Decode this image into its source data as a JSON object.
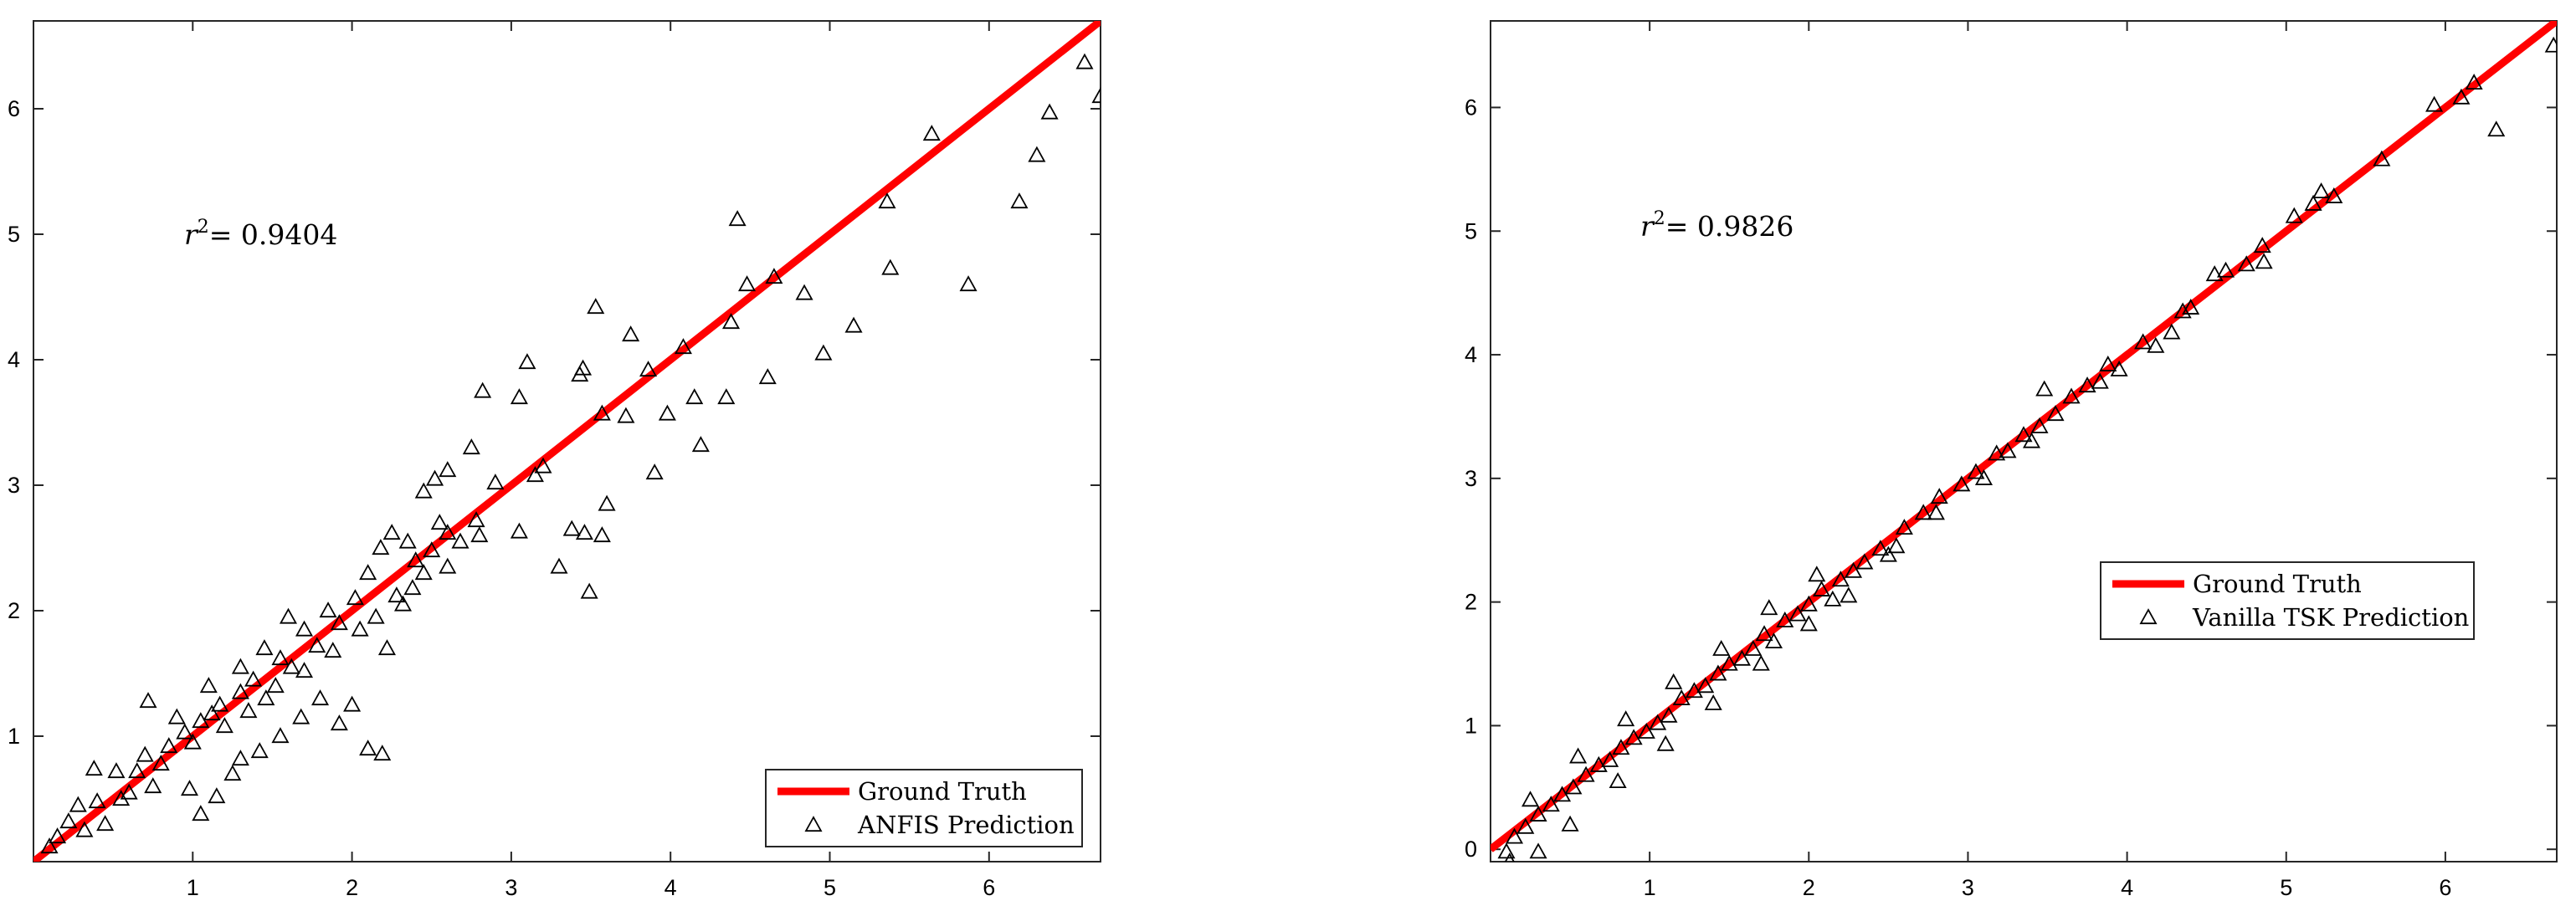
{
  "chart_data": [
    {
      "type": "scatter",
      "title": "",
      "xlabel": "",
      "ylabel": "",
      "xlim": [
        0,
        6.7
      ],
      "ylim": [
        0,
        6.7
      ],
      "xticks": [
        "1",
        "2",
        "3",
        "4",
        "5",
        "6"
      ],
      "yticks": [
        "1",
        "2",
        "3",
        "4",
        "5",
        "6"
      ],
      "annotation": {
        "prefix": "r",
        "sup": "2",
        "text": "= 0.9404"
      },
      "legend": {
        "location": "bottom-right",
        "line_label": "Ground Truth",
        "marker_label": "ANFIS Prediction"
      },
      "reference_line": {
        "name": "Ground Truth",
        "color": "#ff0000",
        "x": [
          0,
          6.7
        ],
        "y": [
          0,
          6.7
        ]
      },
      "series": [
        {
          "name": "ANFIS Prediction",
          "marker": "triangle",
          "color": "#000000",
          "points": [
            [
              6.7,
              6.1
            ],
            [
              6.6,
              6.37
            ],
            [
              6.38,
              5.97
            ],
            [
              6.3,
              5.63
            ],
            [
              6.19,
              5.26
            ],
            [
              5.87,
              4.6
            ],
            [
              5.64,
              5.8
            ],
            [
              5.38,
              4.73
            ],
            [
              5.36,
              5.26
            ],
            [
              5.15,
              4.27
            ],
            [
              4.96,
              4.05
            ],
            [
              4.84,
              4.53
            ],
            [
              4.65,
              4.66
            ],
            [
              4.48,
              4.6
            ],
            [
              4.42,
              5.12
            ],
            [
              4.38,
              4.3
            ],
            [
              4.61,
              3.86
            ],
            [
              4.35,
              3.7
            ],
            [
              4.15,
              3.7
            ],
            [
              4.19,
              3.32
            ],
            [
              4.08,
              4.1
            ],
            [
              3.98,
              3.57
            ],
            [
              3.9,
              3.1
            ],
            [
              3.86,
              3.92
            ],
            [
              3.75,
              4.2
            ],
            [
              3.72,
              3.55
            ],
            [
              3.57,
              3.57
            ],
            [
              3.53,
              4.42
            ],
            [
              3.45,
              3.93
            ],
            [
              3.43,
              3.88
            ],
            [
              3.6,
              2.85
            ],
            [
              3.57,
              2.6
            ],
            [
              3.46,
              2.62
            ],
            [
              3.49,
              2.15
            ],
            [
              3.3,
              2.35
            ],
            [
              3.1,
              3.98
            ],
            [
              3.05,
              3.7
            ],
            [
              3.38,
              2.65
            ],
            [
              3.2,
              3.15
            ],
            [
              3.15,
              3.08
            ],
            [
              3.05,
              2.63
            ],
            [
              2.9,
              3.02
            ],
            [
              2.82,
              3.75
            ],
            [
              2.75,
              3.3
            ],
            [
              2.6,
              3.12
            ],
            [
              2.52,
              3.05
            ],
            [
              2.45,
              2.95
            ],
            [
              2.6,
              2.62
            ],
            [
              2.6,
              2.35
            ],
            [
              2.78,
              2.72
            ],
            [
              2.8,
              2.6
            ],
            [
              2.45,
              2.3
            ],
            [
              2.38,
              2.18
            ],
            [
              2.32,
              2.05
            ],
            [
              2.22,
              1.7
            ],
            [
              2.19,
              0.86
            ],
            [
              2.1,
              0.9
            ],
            [
              2.0,
              1.25
            ],
            [
              1.92,
              1.1
            ],
            [
              1.8,
              1.3
            ],
            [
              1.68,
              1.15
            ],
            [
              1.55,
              1.0
            ],
            [
              1.42,
              0.88
            ],
            [
              1.3,
              0.82
            ],
            [
              1.25,
              0.7
            ],
            [
              1.05,
              0.38
            ],
            [
              0.98,
              0.58
            ],
            [
              1.15,
              0.52
            ],
            [
              0.72,
              1.28
            ],
            [
              0.52,
              0.72
            ],
            [
              0.38,
              0.74
            ],
            [
              0.15,
              0.2
            ],
            [
              0.1,
              0.12
            ],
            [
              0.28,
              0.45
            ],
            [
              0.45,
              0.3
            ],
            [
              0.6,
              0.55
            ],
            [
              0.75,
              0.6
            ],
            [
              0.85,
              0.92
            ],
            [
              0.95,
              1.03
            ],
            [
              1.05,
              1.12
            ],
            [
              1.12,
              1.18
            ],
            [
              1.2,
              1.08
            ],
            [
              1.3,
              1.35
            ],
            [
              1.38,
              1.45
            ],
            [
              1.46,
              1.3
            ],
            [
              1.55,
              1.62
            ],
            [
              1.62,
              1.55
            ],
            [
              1.7,
              1.85
            ],
            [
              1.78,
              1.72
            ],
            [
              1.85,
              2.0
            ],
            [
              1.92,
              1.9
            ],
            [
              2.02,
              2.1
            ],
            [
              2.1,
              2.3
            ],
            [
              2.18,
              2.5
            ],
            [
              2.25,
              2.62
            ],
            [
              2.35,
              2.55
            ],
            [
              2.4,
              2.4
            ],
            [
              1.6,
              1.95
            ],
            [
              1.45,
              1.7
            ],
            [
              1.3,
              1.55
            ],
            [
              1.1,
              1.4
            ],
            [
              0.9,
              1.15
            ],
            [
              0.7,
              0.85
            ],
            [
              0.55,
              0.5
            ],
            [
              0.4,
              0.48
            ],
            [
              0.32,
              0.25
            ],
            [
              0.22,
              0.32
            ],
            [
              0.65,
              0.72
            ],
            [
              0.8,
              0.78
            ],
            [
              1.0,
              0.95
            ],
            [
              1.17,
              1.25
            ],
            [
              1.35,
              1.2
            ],
            [
              1.52,
              1.4
            ],
            [
              1.7,
              1.52
            ],
            [
              1.88,
              1.68
            ],
            [
              2.05,
              1.85
            ],
            [
              2.15,
              1.95
            ],
            [
              2.28,
              2.12
            ],
            [
              2.5,
              2.48
            ],
            [
              2.68,
              2.55
            ],
            [
              2.55,
              2.7
            ]
          ]
        }
      ]
    },
    {
      "type": "scatter",
      "title": "",
      "xlabel": "",
      "ylabel": "",
      "xlim": [
        0,
        6.7
      ],
      "ylim": [
        -0.1,
        6.7
      ],
      "xticks": [
        "1",
        "2",
        "3",
        "4",
        "5",
        "6"
      ],
      "yticks": [
        "0",
        "1",
        "2",
        "3",
        "4",
        "5",
        "6"
      ],
      "annotation": {
        "prefix": "r",
        "sup": "2",
        "text": "= 0.9826"
      },
      "legend": {
        "location": "right",
        "line_label": "Ground Truth",
        "marker_label": "Vanilla TSK Prediction"
      },
      "reference_line": {
        "name": "Ground Truth",
        "color": "#ff0000",
        "x": [
          0,
          6.7
        ],
        "y": [
          0,
          6.7
        ]
      },
      "series": [
        {
          "name": "Vanilla TSK Prediction",
          "marker": "triangle",
          "color": "#000000",
          "points": [
            [
              6.68,
              6.5
            ],
            [
              6.32,
              5.82
            ],
            [
              6.18,
              6.2
            ],
            [
              6.1,
              6.08
            ],
            [
              5.93,
              6.02
            ],
            [
              5.6,
              5.58
            ],
            [
              5.3,
              5.28
            ],
            [
              5.22,
              5.32
            ],
            [
              5.17,
              5.22
            ],
            [
              5.05,
              5.12
            ],
            [
              4.85,
              4.88
            ],
            [
              4.86,
              4.75
            ],
            [
              4.75,
              4.73
            ],
            [
              4.62,
              4.68
            ],
            [
              4.55,
              4.65
            ],
            [
              4.4,
              4.38
            ],
            [
              4.35,
              4.35
            ],
            [
              4.28,
              4.18
            ],
            [
              4.18,
              4.07
            ],
            [
              4.1,
              4.1
            ],
            [
              3.95,
              3.88
            ],
            [
              3.88,
              3.92
            ],
            [
              3.83,
              3.78
            ],
            [
              3.75,
              3.75
            ],
            [
              3.65,
              3.66
            ],
            [
              3.55,
              3.52
            ],
            [
              3.45,
              3.42
            ],
            [
              3.48,
              3.72
            ],
            [
              3.35,
              3.35
            ],
            [
              3.25,
              3.22
            ],
            [
              3.18,
              3.2
            ],
            [
              3.05,
              3.05
            ],
            [
              2.96,
              2.95
            ],
            [
              2.82,
              2.85
            ],
            [
              2.72,
              2.72
            ],
            [
              2.6,
              2.6
            ],
            [
              2.55,
              2.45
            ],
            [
              2.45,
              2.43
            ],
            [
              2.35,
              2.32
            ],
            [
              2.28,
              2.25
            ],
            [
              2.2,
              2.18
            ],
            [
              2.15,
              2.02
            ],
            [
              2.08,
              2.1
            ],
            [
              2.0,
              1.98
            ],
            [
              1.93,
              1.9
            ],
            [
              1.85,
              1.85
            ],
            [
              1.78,
              1.68
            ],
            [
              1.72,
              1.74
            ],
            [
              1.65,
              1.62
            ],
            [
              1.58,
              1.54
            ],
            [
              1.5,
              1.5
            ],
            [
              1.43,
              1.42
            ],
            [
              1.35,
              1.32
            ],
            [
              1.28,
              1.28
            ],
            [
              1.2,
              1.22
            ],
            [
              1.12,
              1.08
            ],
            [
              1.05,
              1.02
            ],
            [
              0.98,
              0.95
            ],
            [
              0.9,
              0.9
            ],
            [
              0.82,
              0.82
            ],
            [
              0.75,
              0.72
            ],
            [
              0.68,
              0.68
            ],
            [
              0.6,
              0.6
            ],
            [
              0.52,
              0.5
            ],
            [
              0.45,
              0.44
            ],
            [
              0.38,
              0.36
            ],
            [
              0.3,
              0.28
            ],
            [
              0.22,
              0.18
            ],
            [
              0.15,
              0.1
            ],
            [
              0.1,
              -0.02
            ],
            [
              0.12,
              -0.1
            ],
            [
              0.3,
              -0.02
            ],
            [
              0.5,
              0.2
            ],
            [
              0.8,
              0.55
            ],
            [
              1.1,
              0.85
            ],
            [
              1.4,
              1.18
            ],
            [
              1.7,
              1.5
            ],
            [
              2.0,
              1.82
            ],
            [
              2.25,
              2.05
            ],
            [
              2.5,
              2.38
            ],
            [
              2.8,
              2.72
            ],
            [
              3.1,
              3.0
            ],
            [
              3.4,
              3.3
            ],
            [
              0.25,
              0.4
            ],
            [
              0.55,
              0.75
            ],
            [
              0.85,
              1.05
            ],
            [
              1.15,
              1.35
            ],
            [
              1.45,
              1.62
            ],
            [
              1.75,
              1.95
            ],
            [
              2.05,
              2.22
            ]
          ]
        }
      ]
    }
  ]
}
